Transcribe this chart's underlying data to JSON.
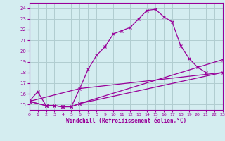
{
  "xlabel": "Windchill (Refroidissement éolien,°C)",
  "bg_color": "#d4edf0",
  "grid_color": "#b0cdd0",
  "line_color": "#990099",
  "xlim": [
    0,
    23
  ],
  "ylim": [
    14.5,
    24.5
  ],
  "yticks": [
    15,
    16,
    17,
    18,
    19,
    20,
    21,
    22,
    23,
    24
  ],
  "xticks": [
    0,
    1,
    2,
    3,
    4,
    5,
    6,
    7,
    8,
    9,
    10,
    11,
    12,
    13,
    14,
    15,
    16,
    17,
    18,
    19,
    20,
    21,
    22,
    23
  ],
  "curve1_x": [
    0,
    1,
    2,
    3,
    4,
    5,
    6,
    7,
    8,
    9,
    10,
    11,
    12,
    13,
    14,
    15,
    16,
    17,
    18,
    19,
    20,
    21
  ],
  "curve1_y": [
    15.3,
    16.2,
    14.9,
    14.9,
    14.8,
    14.8,
    16.5,
    18.3,
    19.6,
    20.4,
    21.6,
    21.9,
    22.2,
    23.0,
    23.8,
    23.9,
    23.2,
    22.7,
    20.5,
    19.3,
    18.5,
    18.0
  ],
  "line2_x": [
    0,
    2,
    3,
    4,
    5,
    6,
    23
  ],
  "line2_y": [
    15.3,
    14.9,
    14.9,
    14.8,
    14.8,
    15.1,
    18.0
  ],
  "line3_x": [
    0,
    2,
    3,
    4,
    5,
    6,
    23
  ],
  "line3_y": [
    15.3,
    14.9,
    14.9,
    14.8,
    14.8,
    15.1,
    19.2
  ],
  "line4_x": [
    0,
    6,
    23
  ],
  "line4_y": [
    15.3,
    16.5,
    18.0
  ]
}
